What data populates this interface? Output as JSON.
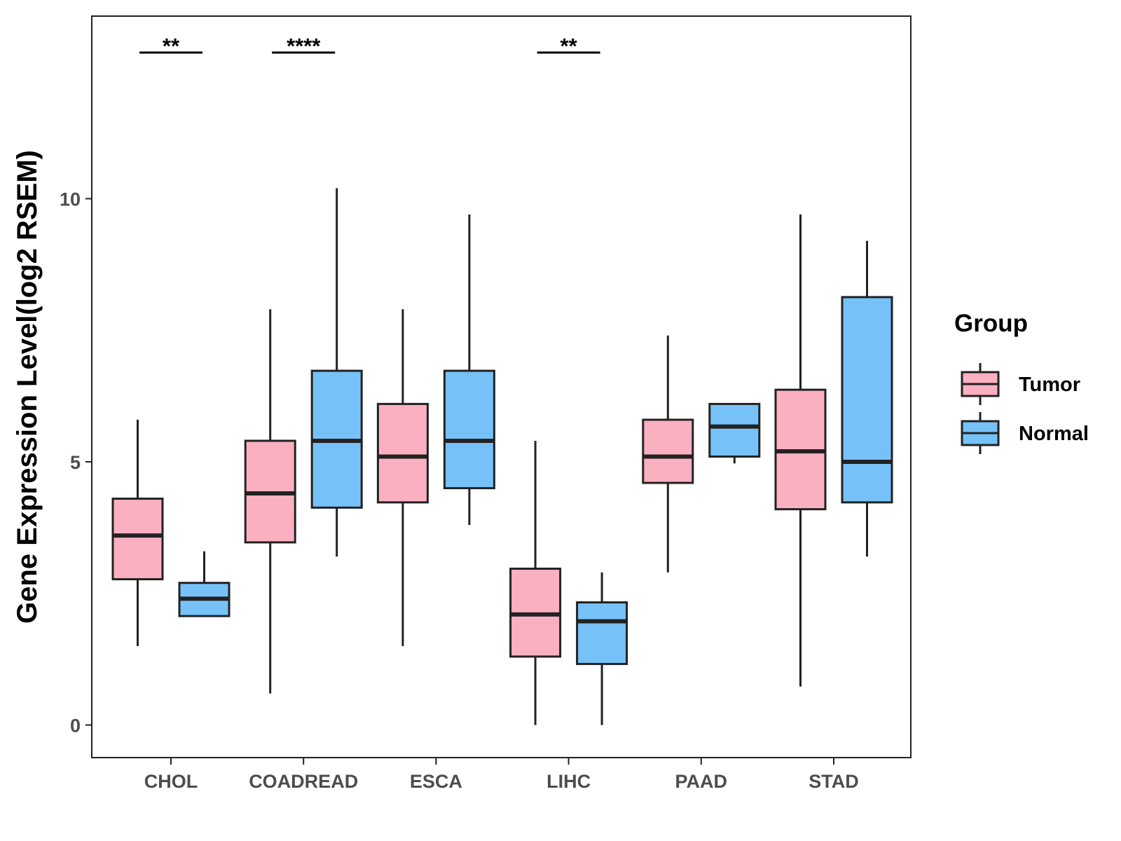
{
  "chart_data": {
    "type": "boxplot",
    "title": "",
    "xlabel": "",
    "ylabel": "Gene Expression Level(log2 RSEM)",
    "ylim": [
      -0.6,
      13.5
    ],
    "yticks": [
      0,
      5,
      10
    ],
    "grid": false,
    "legend": {
      "title": "Group",
      "position": "right",
      "entries": [
        {
          "name": "Tumor",
          "color": "#FBB0C1"
        },
        {
          "name": "Normal",
          "color": "#76C2F8"
        }
      ]
    },
    "categories": [
      "CHOL",
      "COADREAD",
      "ESCA",
      "LIHC",
      "PAAD",
      "STAD"
    ],
    "series": [
      {
        "name": "Tumor",
        "color": "#FBB0C1",
        "boxes": [
          {
            "min": 1.5,
            "q1": 2.77,
            "median": 3.6,
            "q3": 4.3,
            "max": 5.8
          },
          {
            "min": 0.6,
            "q1": 3.47,
            "median": 4.4,
            "q3": 5.4,
            "max": 7.9
          },
          {
            "min": 1.5,
            "q1": 4.23,
            "median": 5.1,
            "q3": 6.1,
            "max": 7.9
          },
          {
            "min": 0.0,
            "q1": 1.3,
            "median": 2.1,
            "q3": 2.97,
            "max": 5.4
          },
          {
            "min": 2.9,
            "q1": 4.6,
            "median": 5.1,
            "q3": 5.8,
            "max": 7.4
          },
          {
            "min": 0.73,
            "q1": 4.1,
            "median": 5.2,
            "q3": 6.37,
            "max": 9.7
          }
        ]
      },
      {
        "name": "Normal",
        "color": "#76C2F8",
        "boxes": [
          {
            "min": 2.07,
            "q1": 2.07,
            "median": 2.4,
            "q3": 2.7,
            "max": 3.3
          },
          {
            "min": 3.2,
            "q1": 4.13,
            "median": 5.4,
            "q3": 6.73,
            "max": 10.2
          },
          {
            "min": 3.8,
            "q1": 4.5,
            "median": 5.4,
            "q3": 6.73,
            "max": 9.7
          },
          {
            "min": 0.0,
            "q1": 1.16,
            "median": 1.97,
            "q3": 2.33,
            "max": 2.9
          },
          {
            "min": 4.97,
            "q1": 5.1,
            "median": 5.67,
            "q3": 6.1,
            "max": 6.1
          },
          {
            "min": 3.2,
            "q1": 4.23,
            "median": 5.0,
            "q3": 8.13,
            "max": 9.2
          }
        ]
      }
    ],
    "annotations": [
      {
        "category": "CHOL",
        "label": "**"
      },
      {
        "category": "COADREAD",
        "label": "****"
      },
      {
        "category": "LIHC",
        "label": "**"
      }
    ]
  }
}
